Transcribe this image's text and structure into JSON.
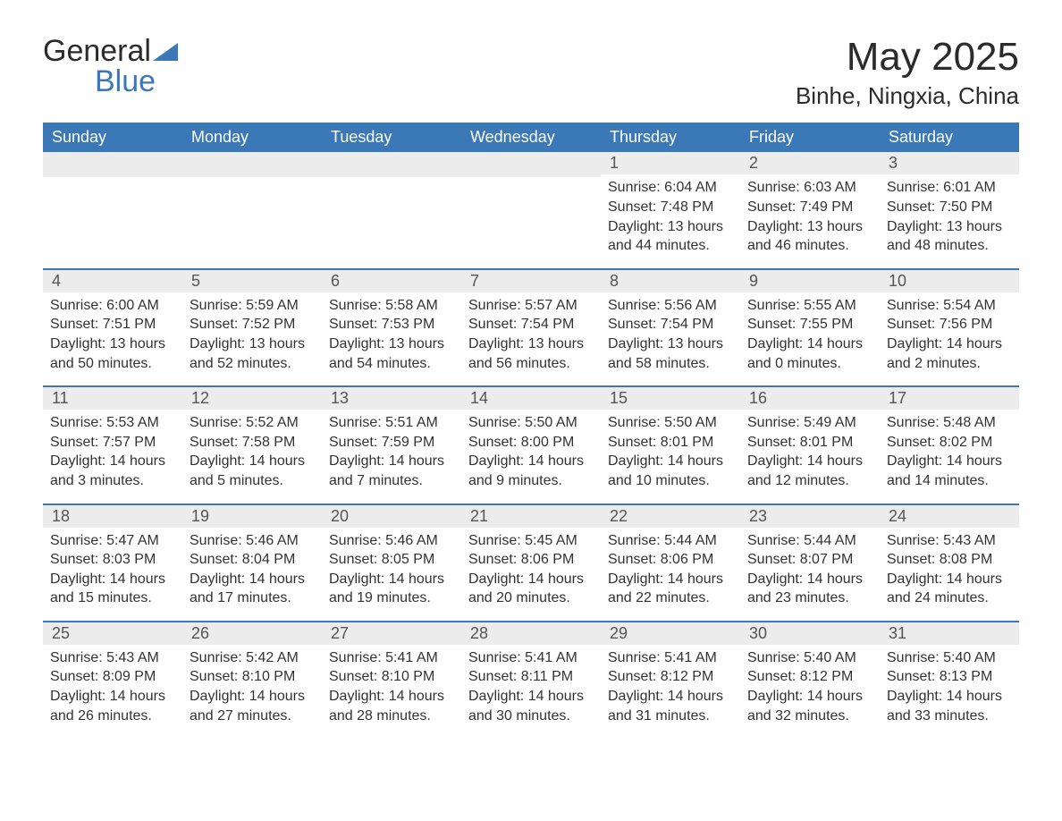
{
  "logo": {
    "word1": "General",
    "word2": "Blue"
  },
  "title": "May 2025",
  "location": "Binhe, Ningxia, China",
  "colors": {
    "header_bg": "#3b78b8",
    "header_text": "#ffffff",
    "daynum_bg": "#ececec",
    "daynum_text": "#555555",
    "body_text": "#333333",
    "separator": "#3b78b8",
    "page_bg": "#ffffff"
  },
  "weekdays": [
    "Sunday",
    "Monday",
    "Tuesday",
    "Wednesday",
    "Thursday",
    "Friday",
    "Saturday"
  ],
  "weeks": [
    [
      {
        "n": "",
        "sr": "",
        "ss": "",
        "dl": ""
      },
      {
        "n": "",
        "sr": "",
        "ss": "",
        "dl": ""
      },
      {
        "n": "",
        "sr": "",
        "ss": "",
        "dl": ""
      },
      {
        "n": "",
        "sr": "",
        "ss": "",
        "dl": ""
      },
      {
        "n": "1",
        "sr": "Sunrise: 6:04 AM",
        "ss": "Sunset: 7:48 PM",
        "dl": "Daylight: 13 hours and 44 minutes."
      },
      {
        "n": "2",
        "sr": "Sunrise: 6:03 AM",
        "ss": "Sunset: 7:49 PM",
        "dl": "Daylight: 13 hours and 46 minutes."
      },
      {
        "n": "3",
        "sr": "Sunrise: 6:01 AM",
        "ss": "Sunset: 7:50 PM",
        "dl": "Daylight: 13 hours and 48 minutes."
      }
    ],
    [
      {
        "n": "4",
        "sr": "Sunrise: 6:00 AM",
        "ss": "Sunset: 7:51 PM",
        "dl": "Daylight: 13 hours and 50 minutes."
      },
      {
        "n": "5",
        "sr": "Sunrise: 5:59 AM",
        "ss": "Sunset: 7:52 PM",
        "dl": "Daylight: 13 hours and 52 minutes."
      },
      {
        "n": "6",
        "sr": "Sunrise: 5:58 AM",
        "ss": "Sunset: 7:53 PM",
        "dl": "Daylight: 13 hours and 54 minutes."
      },
      {
        "n": "7",
        "sr": "Sunrise: 5:57 AM",
        "ss": "Sunset: 7:54 PM",
        "dl": "Daylight: 13 hours and 56 minutes."
      },
      {
        "n": "8",
        "sr": "Sunrise: 5:56 AM",
        "ss": "Sunset: 7:54 PM",
        "dl": "Daylight: 13 hours and 58 minutes."
      },
      {
        "n": "9",
        "sr": "Sunrise: 5:55 AM",
        "ss": "Sunset: 7:55 PM",
        "dl": "Daylight: 14 hours and 0 minutes."
      },
      {
        "n": "10",
        "sr": "Sunrise: 5:54 AM",
        "ss": "Sunset: 7:56 PM",
        "dl": "Daylight: 14 hours and 2 minutes."
      }
    ],
    [
      {
        "n": "11",
        "sr": "Sunrise: 5:53 AM",
        "ss": "Sunset: 7:57 PM",
        "dl": "Daylight: 14 hours and 3 minutes."
      },
      {
        "n": "12",
        "sr": "Sunrise: 5:52 AM",
        "ss": "Sunset: 7:58 PM",
        "dl": "Daylight: 14 hours and 5 minutes."
      },
      {
        "n": "13",
        "sr": "Sunrise: 5:51 AM",
        "ss": "Sunset: 7:59 PM",
        "dl": "Daylight: 14 hours and 7 minutes."
      },
      {
        "n": "14",
        "sr": "Sunrise: 5:50 AM",
        "ss": "Sunset: 8:00 PM",
        "dl": "Daylight: 14 hours and 9 minutes."
      },
      {
        "n": "15",
        "sr": "Sunrise: 5:50 AM",
        "ss": "Sunset: 8:01 PM",
        "dl": "Daylight: 14 hours and 10 minutes."
      },
      {
        "n": "16",
        "sr": "Sunrise: 5:49 AM",
        "ss": "Sunset: 8:01 PM",
        "dl": "Daylight: 14 hours and 12 minutes."
      },
      {
        "n": "17",
        "sr": "Sunrise: 5:48 AM",
        "ss": "Sunset: 8:02 PM",
        "dl": "Daylight: 14 hours and 14 minutes."
      }
    ],
    [
      {
        "n": "18",
        "sr": "Sunrise: 5:47 AM",
        "ss": "Sunset: 8:03 PM",
        "dl": "Daylight: 14 hours and 15 minutes."
      },
      {
        "n": "19",
        "sr": "Sunrise: 5:46 AM",
        "ss": "Sunset: 8:04 PM",
        "dl": "Daylight: 14 hours and 17 minutes."
      },
      {
        "n": "20",
        "sr": "Sunrise: 5:46 AM",
        "ss": "Sunset: 8:05 PM",
        "dl": "Daylight: 14 hours and 19 minutes."
      },
      {
        "n": "21",
        "sr": "Sunrise: 5:45 AM",
        "ss": "Sunset: 8:06 PM",
        "dl": "Daylight: 14 hours and 20 minutes."
      },
      {
        "n": "22",
        "sr": "Sunrise: 5:44 AM",
        "ss": "Sunset: 8:06 PM",
        "dl": "Daylight: 14 hours and 22 minutes."
      },
      {
        "n": "23",
        "sr": "Sunrise: 5:44 AM",
        "ss": "Sunset: 8:07 PM",
        "dl": "Daylight: 14 hours and 23 minutes."
      },
      {
        "n": "24",
        "sr": "Sunrise: 5:43 AM",
        "ss": "Sunset: 8:08 PM",
        "dl": "Daylight: 14 hours and 24 minutes."
      }
    ],
    [
      {
        "n": "25",
        "sr": "Sunrise: 5:43 AM",
        "ss": "Sunset: 8:09 PM",
        "dl": "Daylight: 14 hours and 26 minutes."
      },
      {
        "n": "26",
        "sr": "Sunrise: 5:42 AM",
        "ss": "Sunset: 8:10 PM",
        "dl": "Daylight: 14 hours and 27 minutes."
      },
      {
        "n": "27",
        "sr": "Sunrise: 5:41 AM",
        "ss": "Sunset: 8:10 PM",
        "dl": "Daylight: 14 hours and 28 minutes."
      },
      {
        "n": "28",
        "sr": "Sunrise: 5:41 AM",
        "ss": "Sunset: 8:11 PM",
        "dl": "Daylight: 14 hours and 30 minutes."
      },
      {
        "n": "29",
        "sr": "Sunrise: 5:41 AM",
        "ss": "Sunset: 8:12 PM",
        "dl": "Daylight: 14 hours and 31 minutes."
      },
      {
        "n": "30",
        "sr": "Sunrise: 5:40 AM",
        "ss": "Sunset: 8:12 PM",
        "dl": "Daylight: 14 hours and 32 minutes."
      },
      {
        "n": "31",
        "sr": "Sunrise: 5:40 AM",
        "ss": "Sunset: 8:13 PM",
        "dl": "Daylight: 14 hours and 33 minutes."
      }
    ]
  ]
}
